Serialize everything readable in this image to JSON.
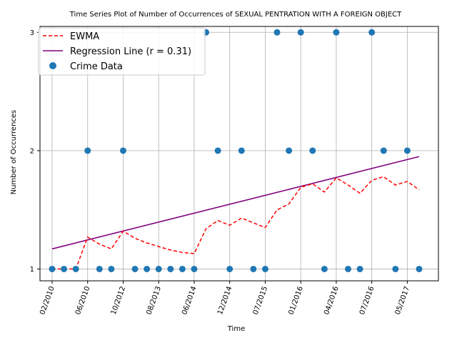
{
  "chart_data": {
    "type": "scatter",
    "title": "Time Series Plot of Number of Occurrences of SEXUAL PENTRATION WITH A FOREIGN OBJECT",
    "xlabel": "Time",
    "ylabel": "Number of Occurrences",
    "x_ticks": [
      "02/2010",
      "06/2010",
      "10/2012",
      "08/2013",
      "06/2014",
      "12/2014",
      "07/2015",
      "01/2016",
      "04/2016",
      "07/2016",
      "05/2017"
    ],
    "y_ticks": [
      1,
      2,
      3
    ],
    "ylim": [
      0.9,
      3.05
    ],
    "grid": true,
    "legend_position": "top-left",
    "series": [
      {
        "name": "Crime Data",
        "kind": "scatter",
        "color": "#1f77b4",
        "values": [
          1,
          1,
          1,
          2,
          1,
          1,
          2,
          1,
          1,
          1,
          1,
          1,
          1,
          3,
          2,
          1,
          2,
          1,
          1,
          3,
          2,
          3,
          2,
          1,
          3,
          1,
          1,
          3,
          2,
          1,
          2,
          1
        ]
      },
      {
        "name": "EWMA",
        "kind": "line-dashed",
        "color": "#ff0000",
        "values": [
          1.0,
          1.0,
          1.0,
          1.27,
          1.21,
          1.17,
          1.32,
          1.26,
          1.22,
          1.19,
          1.16,
          1.14,
          1.13,
          1.34,
          1.41,
          1.37,
          1.43,
          1.39,
          1.35,
          1.5,
          1.55,
          1.69,
          1.72,
          1.65,
          1.77,
          1.71,
          1.64,
          1.75,
          1.78,
          1.71,
          1.74,
          1.67
        ]
      },
      {
        "name": "Regression Line (r = 0.31)",
        "kind": "line",
        "color": "#800080",
        "values": [
          1.17,
          1.95
        ]
      }
    ]
  }
}
